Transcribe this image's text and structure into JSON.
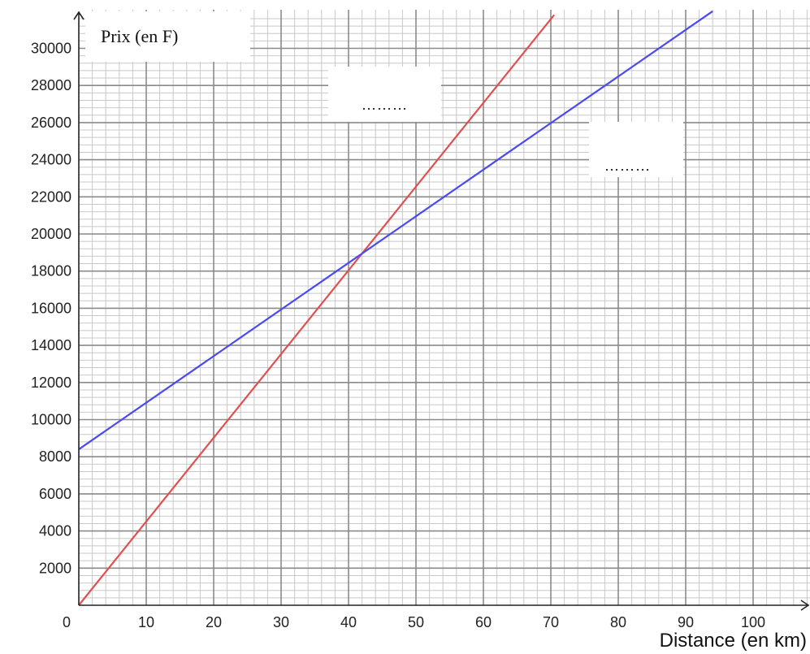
{
  "chart_data": {
    "type": "line",
    "xlabel": "Distance (en km)",
    "ylabel": "Prix (en F)",
    "xlim": [
      0,
      108
    ],
    "ylim": [
      0,
      32000
    ],
    "x_ticks": [
      10,
      20,
      30,
      40,
      50,
      60,
      70,
      80,
      90,
      100
    ],
    "y_ticks": [
      2000,
      4000,
      6000,
      8000,
      10000,
      12000,
      14000,
      16000,
      18000,
      20000,
      22000,
      24000,
      26000,
      28000,
      30000
    ],
    "origin_label": "0",
    "grid": true,
    "series": [
      {
        "color": "#e05050",
        "x": [
          0,
          70.5
        ],
        "y": [
          0,
          31800
        ]
      },
      {
        "color": "#4a4af0",
        "x": [
          0,
          94
        ],
        "y": [
          8400,
          32000
        ]
      }
    ],
    "annotations": [
      {
        "text": "………",
        "for": "red-line"
      },
      {
        "text": "………",
        "for": "blue-line"
      }
    ]
  }
}
